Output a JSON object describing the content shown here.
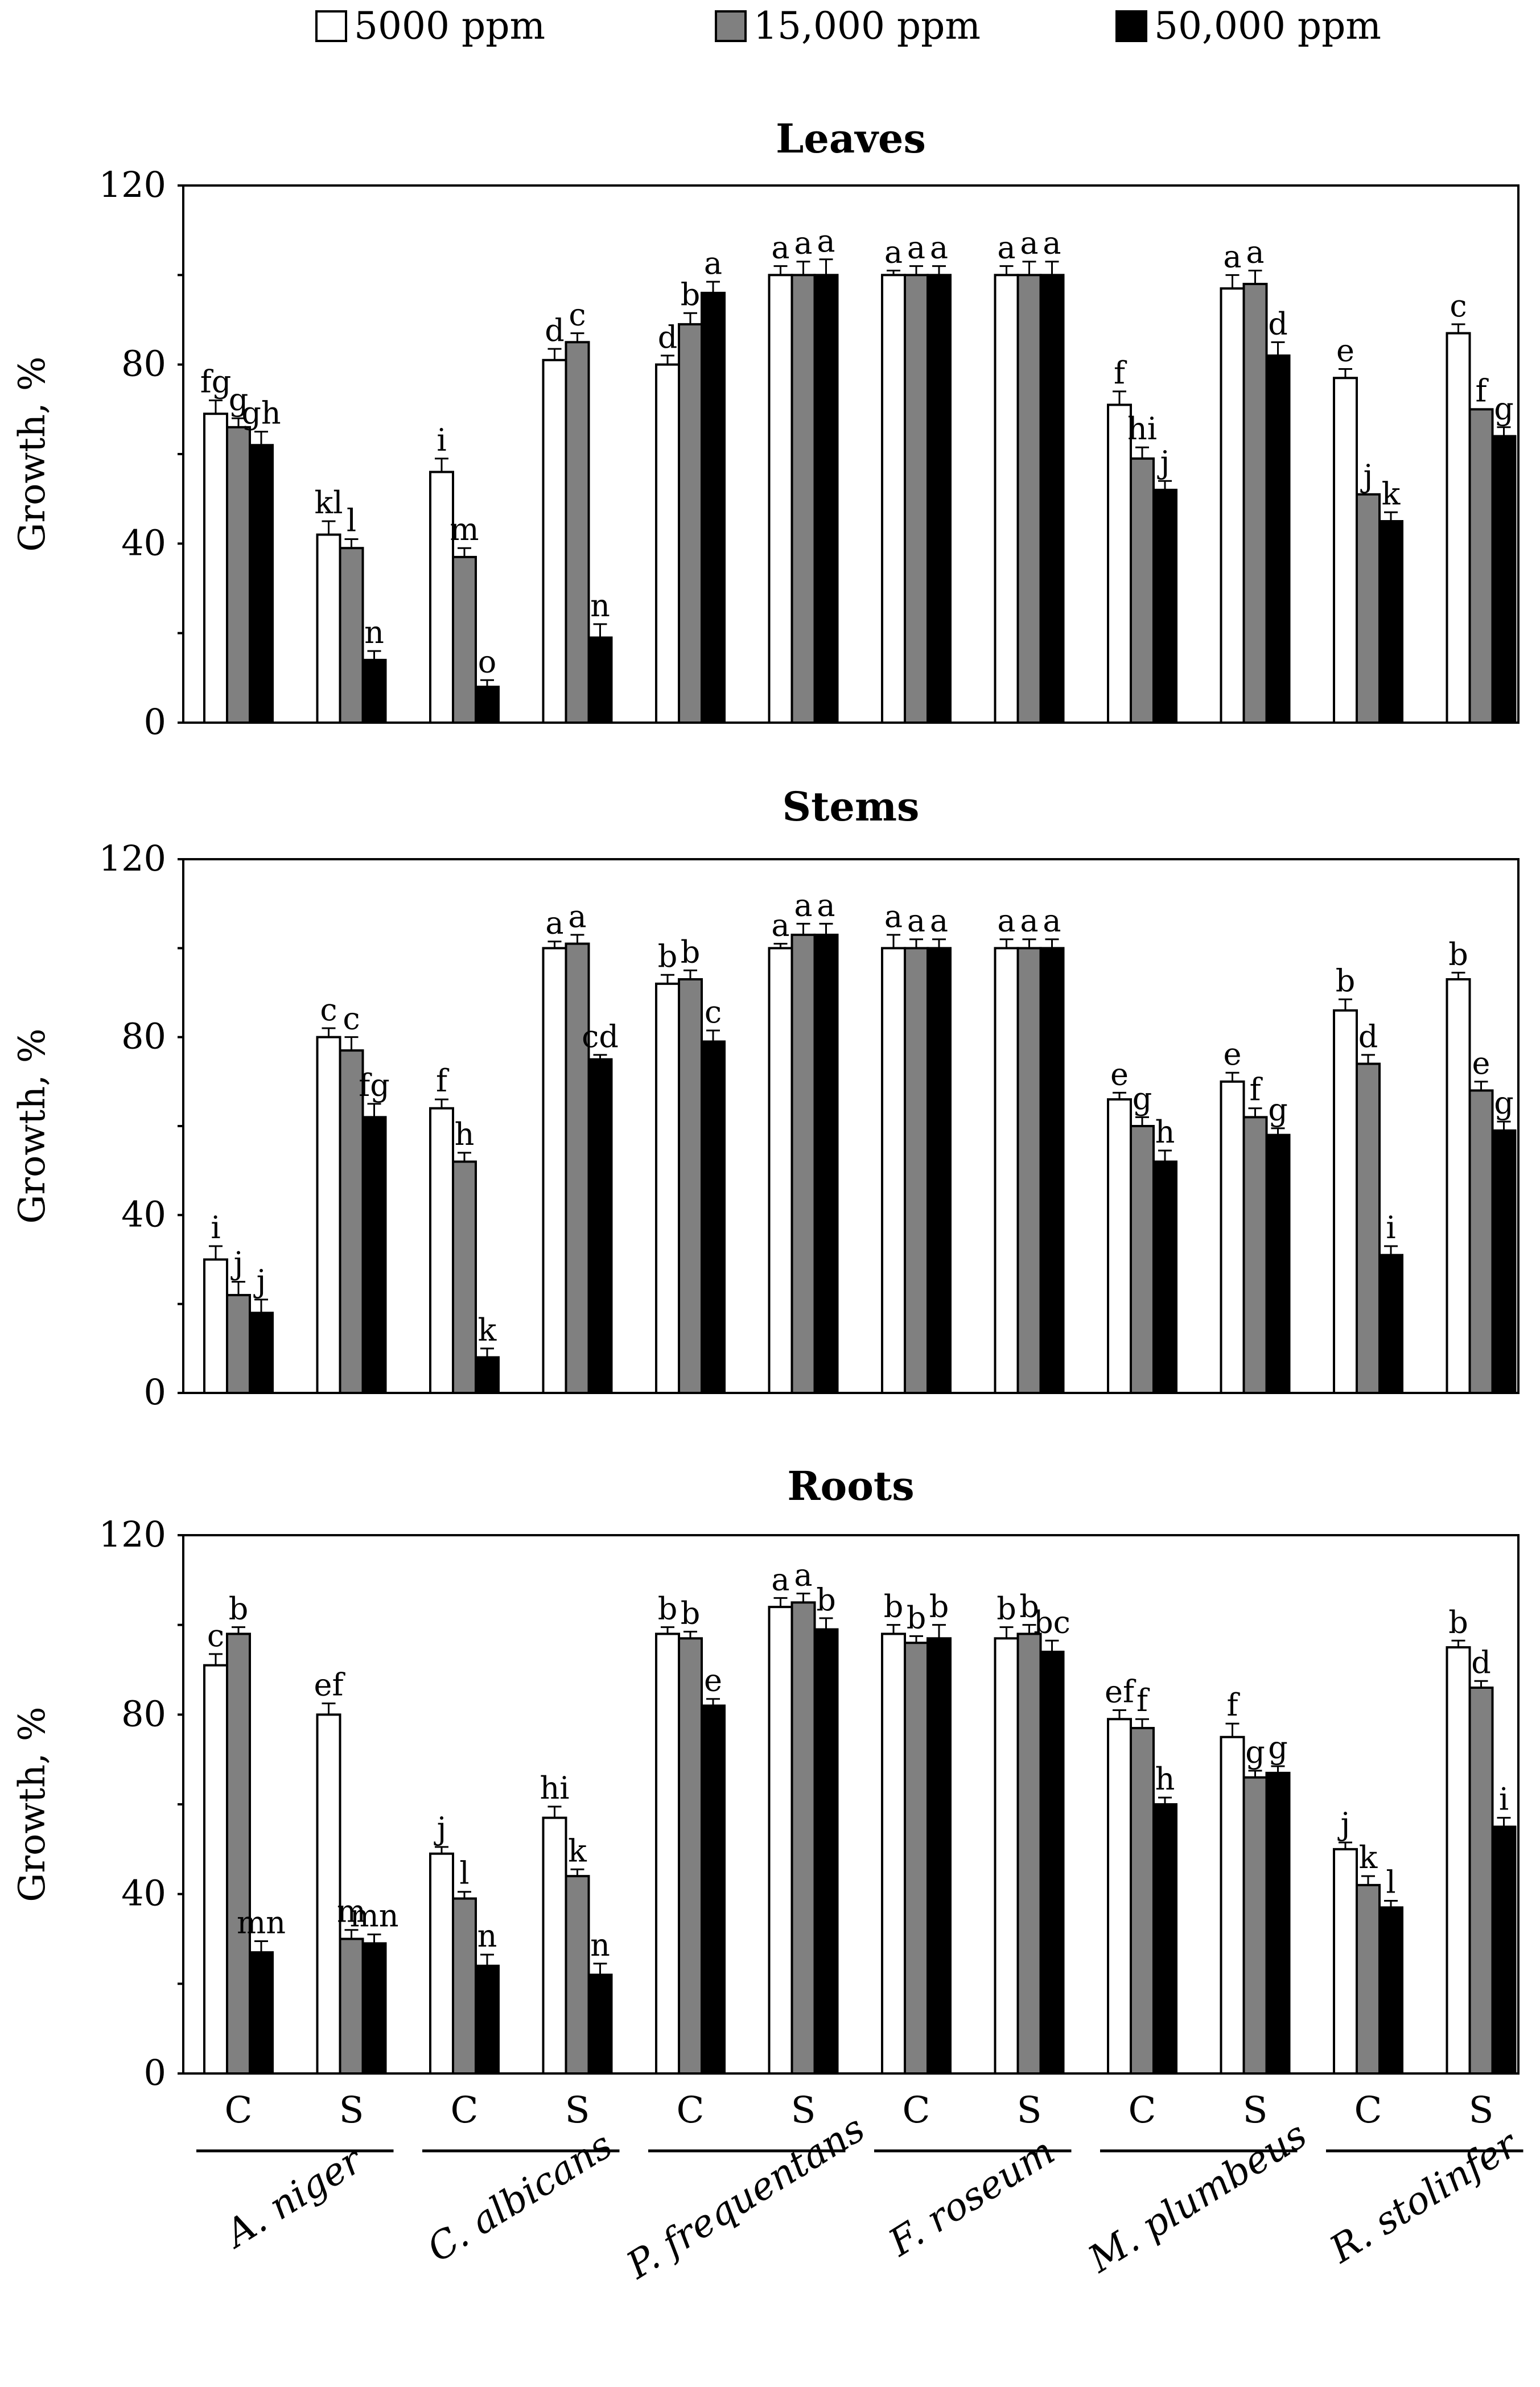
{
  "chart_data": {
    "type": "bar",
    "legend": [
      {
        "label": "5000 ppm",
        "color": "#ffffff"
      },
      {
        "label": "15,000 ppm",
        "color": "#808080"
      },
      {
        "label": "50,000 ppm",
        "color": "#000000"
      }
    ],
    "legend_placement": "top",
    "ylabel": "Growth, %",
    "ylim": [
      0,
      120
    ],
    "yticks": [
      0,
      40,
      80,
      120
    ],
    "groups": [
      "C",
      "S",
      "C",
      "S",
      "C",
      "S",
      "C",
      "S",
      "C",
      "S",
      "C",
      "S"
    ],
    "species": [
      "A. niger",
      "C. albicans",
      "P. frequentans",
      "F. roseum",
      "M. plumbeus",
      "R. stolinfer"
    ],
    "panels": [
      {
        "title": "Leaves",
        "series": [
          {
            "name": "5000 ppm",
            "values": [
              69,
              42,
              56,
              81,
              80,
              100,
              100,
              100,
              71,
              97,
              77,
              87
            ]
          },
          {
            "name": "15,000 ppm",
            "values": [
              66,
              39,
              37,
              85,
              89,
              100,
              100,
              100,
              59,
              98,
              51,
              70
            ]
          },
          {
            "name": "50,000 ppm",
            "values": [
              62,
              14,
              8,
              19,
              96,
              100,
              100,
              100,
              52,
              82,
              45,
              64
            ]
          }
        ],
        "errors": [
          [
            3,
            3,
            3,
            2.5,
            2,
            2,
            1,
            2,
            3,
            3,
            2,
            2
          ],
          [
            2,
            2,
            2,
            2,
            2.5,
            3,
            2,
            3,
            2.5,
            3,
            0,
            0
          ],
          [
            3,
            2,
            1.5,
            3,
            2.5,
            3.5,
            2,
            3,
            2,
            3,
            2,
            2
          ]
        ],
        "letters": [
          [
            "fg",
            "g",
            "gh"
          ],
          [
            "kl",
            "l",
            "n"
          ],
          [
            "i",
            "m",
            "o"
          ],
          [
            "d",
            "c",
            "n"
          ],
          [
            "d",
            "b",
            "a"
          ],
          [
            "a",
            "a",
            "a"
          ],
          [
            "a",
            "a",
            "a"
          ],
          [
            "a",
            "a",
            "a"
          ],
          [
            "f",
            "hi",
            "j"
          ],
          [
            "a",
            "a",
            "d"
          ],
          [
            "e",
            "j",
            "k"
          ],
          [
            "c",
            "f",
            "g"
          ]
        ]
      },
      {
        "title": "Stems",
        "series": [
          {
            "name": "5000 ppm",
            "values": [
              30,
              80,
              64,
              100,
              92,
              100,
              100,
              100,
              66,
              70,
              86,
              93
            ]
          },
          {
            "name": "15,000 ppm",
            "values": [
              22,
              77,
              52,
              101,
              93,
              103,
              100,
              100,
              60,
              62,
              74,
              68
            ]
          },
          {
            "name": "50,000 ppm",
            "values": [
              18,
              62,
              8,
              75,
              79,
              103,
              100,
              100,
              52,
              58,
              31,
              59
            ]
          }
        ],
        "errors": [
          [
            3,
            2,
            2,
            1.5,
            2,
            1,
            3,
            2,
            1.5,
            2,
            2.5,
            1.5
          ],
          [
            3,
            3,
            2,
            2,
            2,
            2.5,
            2,
            2,
            2,
            2,
            2,
            2
          ],
          [
            3,
            3,
            2,
            1,
            2.5,
            2.5,
            2,
            2,
            2.5,
            1.5,
            2,
            2
          ]
        ],
        "letters": [
          [
            "i",
            "j",
            "j"
          ],
          [
            "c",
            "c",
            "fg"
          ],
          [
            "f",
            "h",
            "k"
          ],
          [
            "a",
            "a",
            "cd"
          ],
          [
            "b",
            "b",
            "c"
          ],
          [
            "a",
            "a",
            "a"
          ],
          [
            "a",
            "a",
            "a"
          ],
          [
            "a",
            "a",
            "a"
          ],
          [
            "e",
            "g",
            "h"
          ],
          [
            "e",
            "f",
            "g"
          ],
          [
            "b",
            "d",
            "i"
          ],
          [
            "b",
            "e",
            "g"
          ]
        ]
      },
      {
        "title": "Roots",
        "series": [
          {
            "name": "5000 ppm",
            "values": [
              91,
              80,
              49,
              57,
              98,
              104,
              98,
              97,
              79,
              75,
              50,
              95
            ]
          },
          {
            "name": "15,000 ppm",
            "values": [
              98,
              30,
              39,
              44,
              97,
              105,
              96,
              98,
              77,
              66,
              42,
              86
            ]
          },
          {
            "name": "50,000 ppm",
            "values": [
              27,
              29,
              24,
              22,
              82,
              99,
              97,
              94,
              60,
              67,
              37,
              55
            ]
          }
        ],
        "errors": [
          [
            2.5,
            2.5,
            1.5,
            2.5,
            1.5,
            2,
            2,
            2.5,
            2,
            3,
            1.5,
            1.5
          ],
          [
            1.5,
            2,
            1.5,
            1.5,
            1.5,
            2,
            1.5,
            2,
            2,
            1.5,
            2,
            1.5
          ],
          [
            2.5,
            2,
            2.5,
            2.5,
            1.5,
            2.5,
            3,
            2.5,
            1.5,
            1.5,
            1.5,
            2
          ]
        ],
        "letters": [
          [
            "c",
            "b",
            "mn"
          ],
          [
            "ef",
            "m",
            "mn"
          ],
          [
            "j",
            "l",
            "n"
          ],
          [
            "hi",
            "k",
            "n"
          ],
          [
            "b",
            "b",
            "e"
          ],
          [
            "a",
            "a",
            "b"
          ],
          [
            "b",
            "b",
            "b"
          ],
          [
            "b",
            "b",
            "bc"
          ],
          [
            "ef",
            "f",
            "h"
          ],
          [
            "f",
            "g",
            "g"
          ],
          [
            "j",
            "k",
            "l"
          ],
          [
            "b",
            "d",
            "i"
          ]
        ]
      }
    ]
  }
}
